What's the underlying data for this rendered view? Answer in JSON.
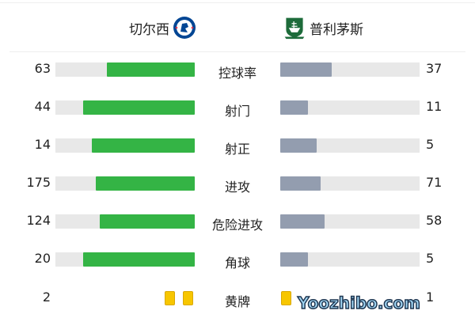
{
  "home_team": {
    "name": "切尔西",
    "badge": "chelsea-crest",
    "color": "#034694"
  },
  "away_team": {
    "name": "普利茅斯",
    "badge": "plymouth-argyle-crest",
    "color": "#1d6b3a"
  },
  "colors": {
    "home_bar": "#34b445",
    "away_bar": "#939daf",
    "track": "#e8e8e8",
    "card": "#f7c600"
  },
  "stats": [
    {
      "label": "控球率",
      "home": "63",
      "away": "37"
    },
    {
      "label": "射门",
      "home": "44",
      "away": "11"
    },
    {
      "label": "射正",
      "home": "14",
      "away": "5"
    },
    {
      "label": "进攻",
      "home": "175",
      "away": "71"
    },
    {
      "label": "危险进攻",
      "home": "124",
      "away": "58"
    },
    {
      "label": "角球",
      "home": "20",
      "away": "5"
    }
  ],
  "yellow_cards": {
    "label": "黄牌",
    "home": "2",
    "away": "1"
  },
  "watermark": "Yoozhibo.com"
}
